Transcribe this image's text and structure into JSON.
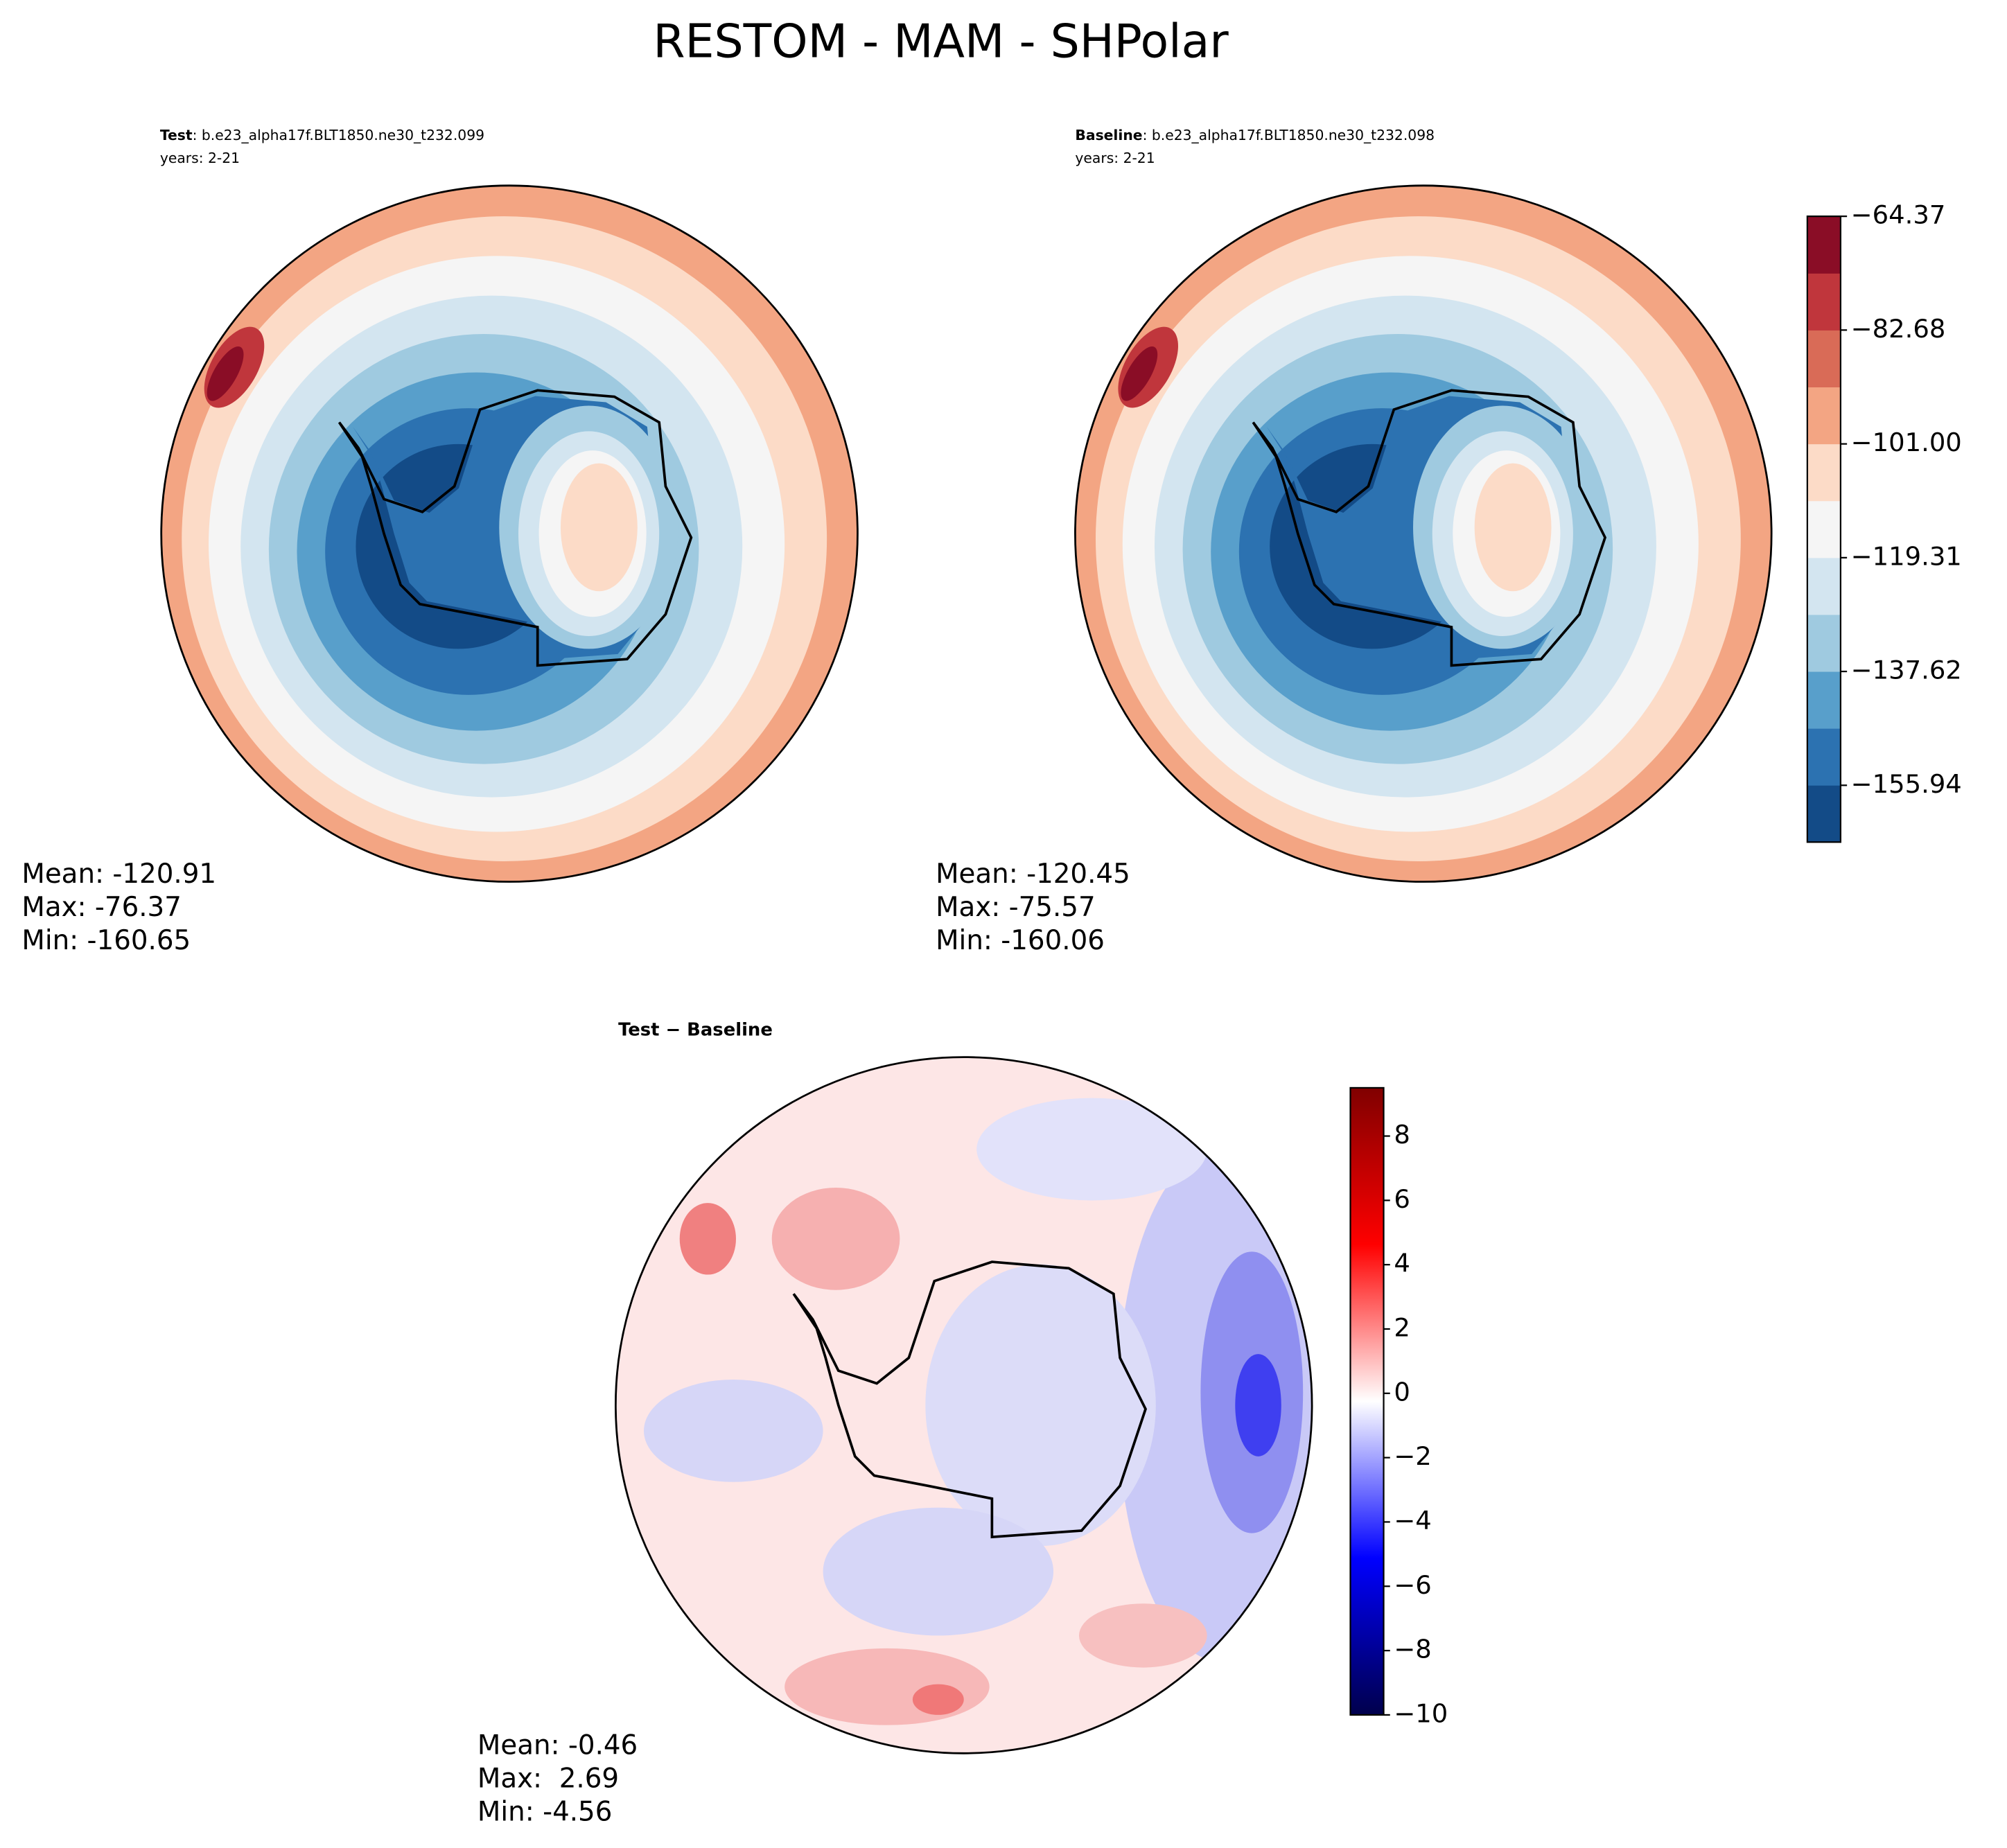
{
  "title": "RESTOM - MAM - SHPolar",
  "panels": [
    {
      "label": "Test",
      "case": ": b.e23_alpha17f.BLT1850.ne30_t232.099",
      "years": "years: 2-21",
      "stats": [
        "Mean: -120.91",
        "Max: -76.37",
        "Min: -160.65"
      ]
    },
    {
      "label": "Baseline",
      "case": ": b.e23_alpha17f.BLT1850.ne30_t232.098",
      "years": "years: 2-21",
      "stats": [
        "Mean: -120.45",
        "Max: -75.57",
        "Min: -160.06"
      ]
    },
    {
      "label": "Test − Baseline",
      "stats": [
        "Mean: -0.46",
        "Max:  2.69",
        "Min: -4.56"
      ]
    }
  ],
  "colorbars": [
    {
      "clim": [
        -165.08,
        -64.37
      ],
      "colors": [
        "#134b87",
        "#2c72b1",
        "#589fcb",
        "#9fcae0",
        "#d3e5f0",
        "#f5f5f5",
        "#fcdbc7",
        "#f3a583",
        "#d96b57",
        "#c0363c",
        "#8a0d26"
      ],
      "ticks": [
        {
          "value": -64.37,
          "label": "−64.37"
        },
        {
          "value": -82.68,
          "label": "−82.68"
        },
        {
          "value": -101,
          "label": "−101.00"
        },
        {
          "value": -119.31,
          "label": "−119.31"
        },
        {
          "value": -137.62,
          "label": "−137.62"
        },
        {
          "value": -155.94,
          "label": "−155.94"
        }
      ]
    },
    {
      "clim": [
        -10,
        9.5
      ],
      "colors": [
        "#00004c",
        "#0000ff",
        "#ffffff",
        "#ff0000",
        "#800000"
      ],
      "ticks": [
        8,
        6,
        4,
        2,
        0,
        {
          "value": -2,
          "label": "−2"
        },
        {
          "value": -4,
          "label": "−4"
        },
        {
          "value": -6,
          "label": "−6"
        },
        {
          "value": -8,
          "label": "−8"
        },
        {
          "value": -10,
          "label": "−10"
        }
      ]
    }
  ]
}
